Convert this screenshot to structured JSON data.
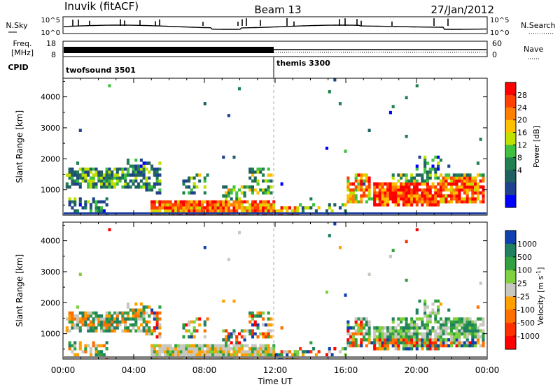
{
  "header": {
    "station": "Inuvik (fitACF)",
    "beam": "Beam 13",
    "date": "27/Jan/2012"
  },
  "top_panels": {
    "nsky_label": "N.Sky",
    "nsky_ticks": [
      "10^5",
      "10^0"
    ],
    "nsearch_label": "N.Search",
    "nsearch_ticks": [
      "10^5",
      "10^0"
    ],
    "freq_label": "Freq.",
    "freq_unit": "[MHz]",
    "freq_ticks": [
      "18",
      "8"
    ],
    "nave_label": "Nave",
    "nave_ticks": [
      "60",
      "0"
    ],
    "cpid_label": "CPID",
    "cpid_segments": [
      {
        "name": "twofsound 3501",
        "start_hour": 0
      },
      {
        "name": "themis 3300",
        "start_hour": 12
      }
    ]
  },
  "chart_data": [
    {
      "type": "heatmap",
      "quantity": "Power",
      "xlabel": "",
      "ylabel": "Slant Range [km]",
      "xlim": [
        0,
        24
      ],
      "ylim": [
        180,
        4600
      ],
      "yticks": [
        1000,
        2000,
        3000,
        4000
      ],
      "colorbar_label": "Power [dB]",
      "colorbar_ticks": [
        "28",
        "24",
        "20",
        "16",
        "12",
        "8",
        "4"
      ],
      "colorbar_colors": [
        "#ff0000",
        "#ff4000",
        "#ff8000",
        "#ffc000",
        "#c0e000",
        "#40c040",
        "#208050",
        "#206060",
        "#204090",
        "#0000ff"
      ]
    },
    {
      "type": "heatmap",
      "quantity": "Velocity",
      "xlabel": "Time UT",
      "ylabel": "Slant Range [km]",
      "xlim": [
        0,
        24
      ],
      "ylim": [
        180,
        4600
      ],
      "yticks": [
        1000,
        2000,
        3000,
        4000
      ],
      "xticks": [
        "00:00",
        "04:00",
        "08:00",
        "12:00",
        "16:00",
        "20:00",
        "00:00"
      ],
      "colorbar_label": "Velocity [m s",
      "colorbar_label_sup": "-1",
      "colorbar_label_end": "]",
      "colorbar_ticks": [
        "1000",
        "500",
        "100",
        "25",
        "-25",
        "-100",
        "-500",
        "-1000"
      ],
      "colorbar_colors": [
        "#1040b0",
        "#208060",
        "#30a040",
        "#80d040",
        "#c8c8c0",
        "#ffa000",
        "#ff7000",
        "#ff3000",
        "#ff0000"
      ]
    }
  ],
  "colors": {
    "background": "#ffffff",
    "ground_scatter": "#808080"
  }
}
